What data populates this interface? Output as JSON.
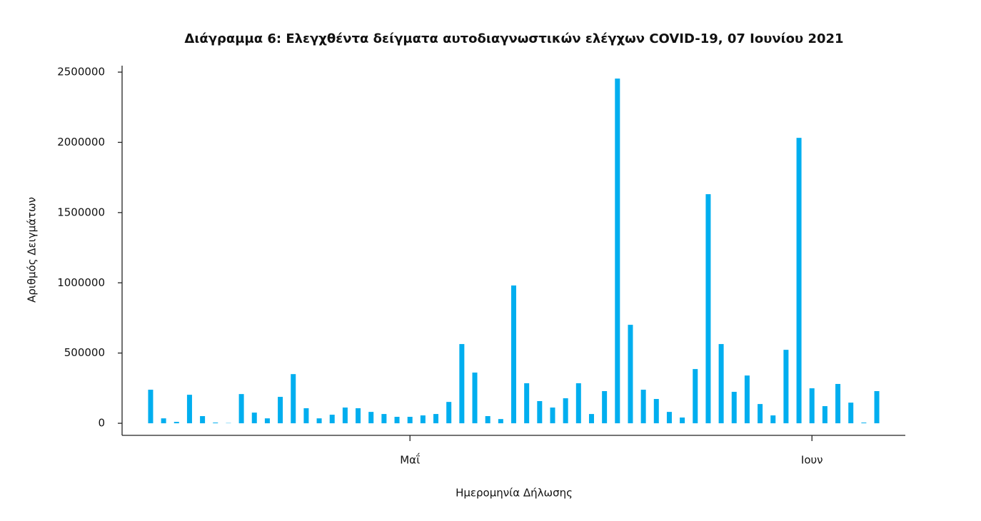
{
  "chart_data": {
    "type": "bar",
    "title": "Διάγραμμα 6: Ελεγχθέντα δείγματα αυτοδιαγνωστικών ελέγχων COVID-19, 07 Ιουνίου 2021",
    "x_label": "Ημερομηνία Δήλωσης",
    "y_label": "Αριθμός Δειγμάτων",
    "categories": [
      null,
      null,
      null,
      null,
      null,
      null,
      null,
      null,
      null,
      null,
      null,
      null,
      null,
      null,
      null,
      null,
      null,
      null,
      null,
      null,
      "Μαΐ",
      null,
      null,
      null,
      null,
      null,
      null,
      null,
      null,
      null,
      null,
      null,
      null,
      null,
      null,
      null,
      null,
      null,
      null,
      null,
      null,
      null,
      null,
      null,
      null,
      null,
      null,
      null,
      null,
      null,
      null,
      "Ιουν",
      null,
      null,
      null,
      null,
      null
    ],
    "values": [
      239000,
      35000,
      10000,
      203000,
      51000,
      5000,
      2000,
      208000,
      76000,
      35000,
      188000,
      350000,
      107000,
      35000,
      61000,
      112000,
      107000,
      81000,
      66000,
      46000,
      46000,
      56000,
      66000,
      152000,
      564000,
      361000,
      51000,
      30000,
      981000,
      285000,
      158000,
      112000,
      178000,
      285000,
      66000,
      229000,
      2454000,
      701000,
      239000,
      173000,
      81000,
      41000,
      386000,
      1631000,
      564000,
      224000,
      340000,
      137000,
      56000,
      523000,
      2032000,
      249000,
      122000,
      280000,
      147000,
      5000,
      229000
    ],
    "color": "#00aeef",
    "ylim": [
      -86000,
      2546000
    ],
    "yticks": [
      0,
      500000,
      1000000,
      1500000,
      2000000,
      2500000
    ],
    "grid": false
  }
}
